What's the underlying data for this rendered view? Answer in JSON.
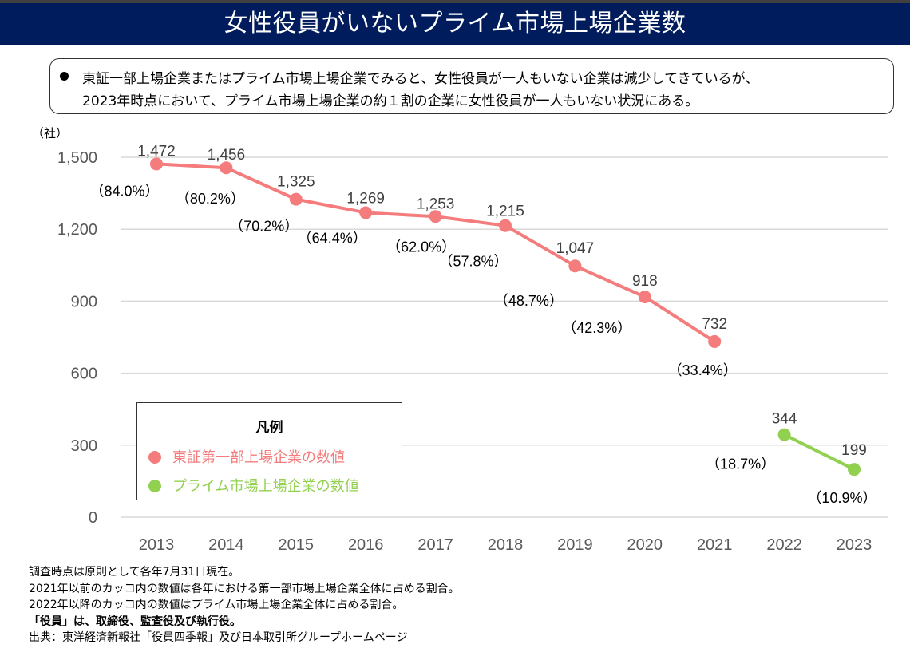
{
  "header": {
    "title": "女性役員がいないプライム市場上場企業数"
  },
  "summary": {
    "lines": [
      "東証一部上場企業またはプライム市場上場企業でみると、女性役員が一人もいない企業は減少してきているが、",
      "2023年時点において、プライム市場上場企業の約１割の企業に女性役員が一人もいない状況にある。"
    ]
  },
  "legend": {
    "title": "凡例",
    "items": [
      {
        "label": "東証第一部上場企業の数値",
        "color": "#f47c7c"
      },
      {
        "label": "プライム市場上場企業の数値",
        "color": "#92d050"
      }
    ]
  },
  "notes": [
    {
      "text": "調査時点は原則として各年7月31日現在。",
      "emphasis": false
    },
    {
      "text": "2021年以前のカッコ内の数値は各年における第一部市場上場企業全体に占める割合。",
      "emphasis": false
    },
    {
      "text": "2022年以降のカッコ内の数値はプライム市場上場企業全体に占める割合。",
      "emphasis": false
    },
    {
      "text": "「役員」は、取締役、監査役及び執行役。",
      "emphasis": true
    },
    {
      "text": "出典：東洋経済新報社「役員四季報」及び日本取引所グループホームページ",
      "emphasis": false
    }
  ],
  "chart_data": {
    "type": "line",
    "title": "女性役員がいないプライム市場上場企業数",
    "xlabel": "",
    "ylabel": "（社）",
    "categories": [
      "2013",
      "2014",
      "2015",
      "2016",
      "2017",
      "2018",
      "2019",
      "2020",
      "2021",
      "2022",
      "2023"
    ],
    "ylim": [
      0,
      1500
    ],
    "yticks": [
      0,
      300,
      600,
      900,
      1200,
      1500
    ],
    "ytick_labels": [
      "0",
      "300",
      "600",
      "900",
      "1,200",
      "1,500"
    ],
    "grid": true,
    "legend_position": "bottom-left",
    "series": [
      {
        "name": "東証第一部上場企業の数値",
        "color": "#f47c7c",
        "x": [
          "2013",
          "2014",
          "2015",
          "2016",
          "2017",
          "2018",
          "2019",
          "2020",
          "2021"
        ],
        "values": [
          1472,
          1456,
          1325,
          1269,
          1253,
          1215,
          1047,
          918,
          732
        ],
        "value_labels": [
          "1,472",
          "1,456",
          "1,325",
          "1,269",
          "1,253",
          "1,215",
          "1,047",
          "918",
          "732"
        ],
        "share_labels": [
          "（84.0%）",
          "（80.2%）",
          "（70.2%）",
          "（64.4%）",
          "（62.0%）",
          "（57.8%）",
          "（48.7%）",
          "（42.3%）",
          "（33.4%）"
        ]
      },
      {
        "name": "プライム市場上場企業の数値",
        "color": "#92d050",
        "x": [
          "2022",
          "2023"
        ],
        "values": [
          344,
          199
        ],
        "value_labels": [
          "344",
          "199"
        ],
        "share_labels": [
          "（18.7%）",
          "（10.9%）"
        ]
      }
    ]
  }
}
